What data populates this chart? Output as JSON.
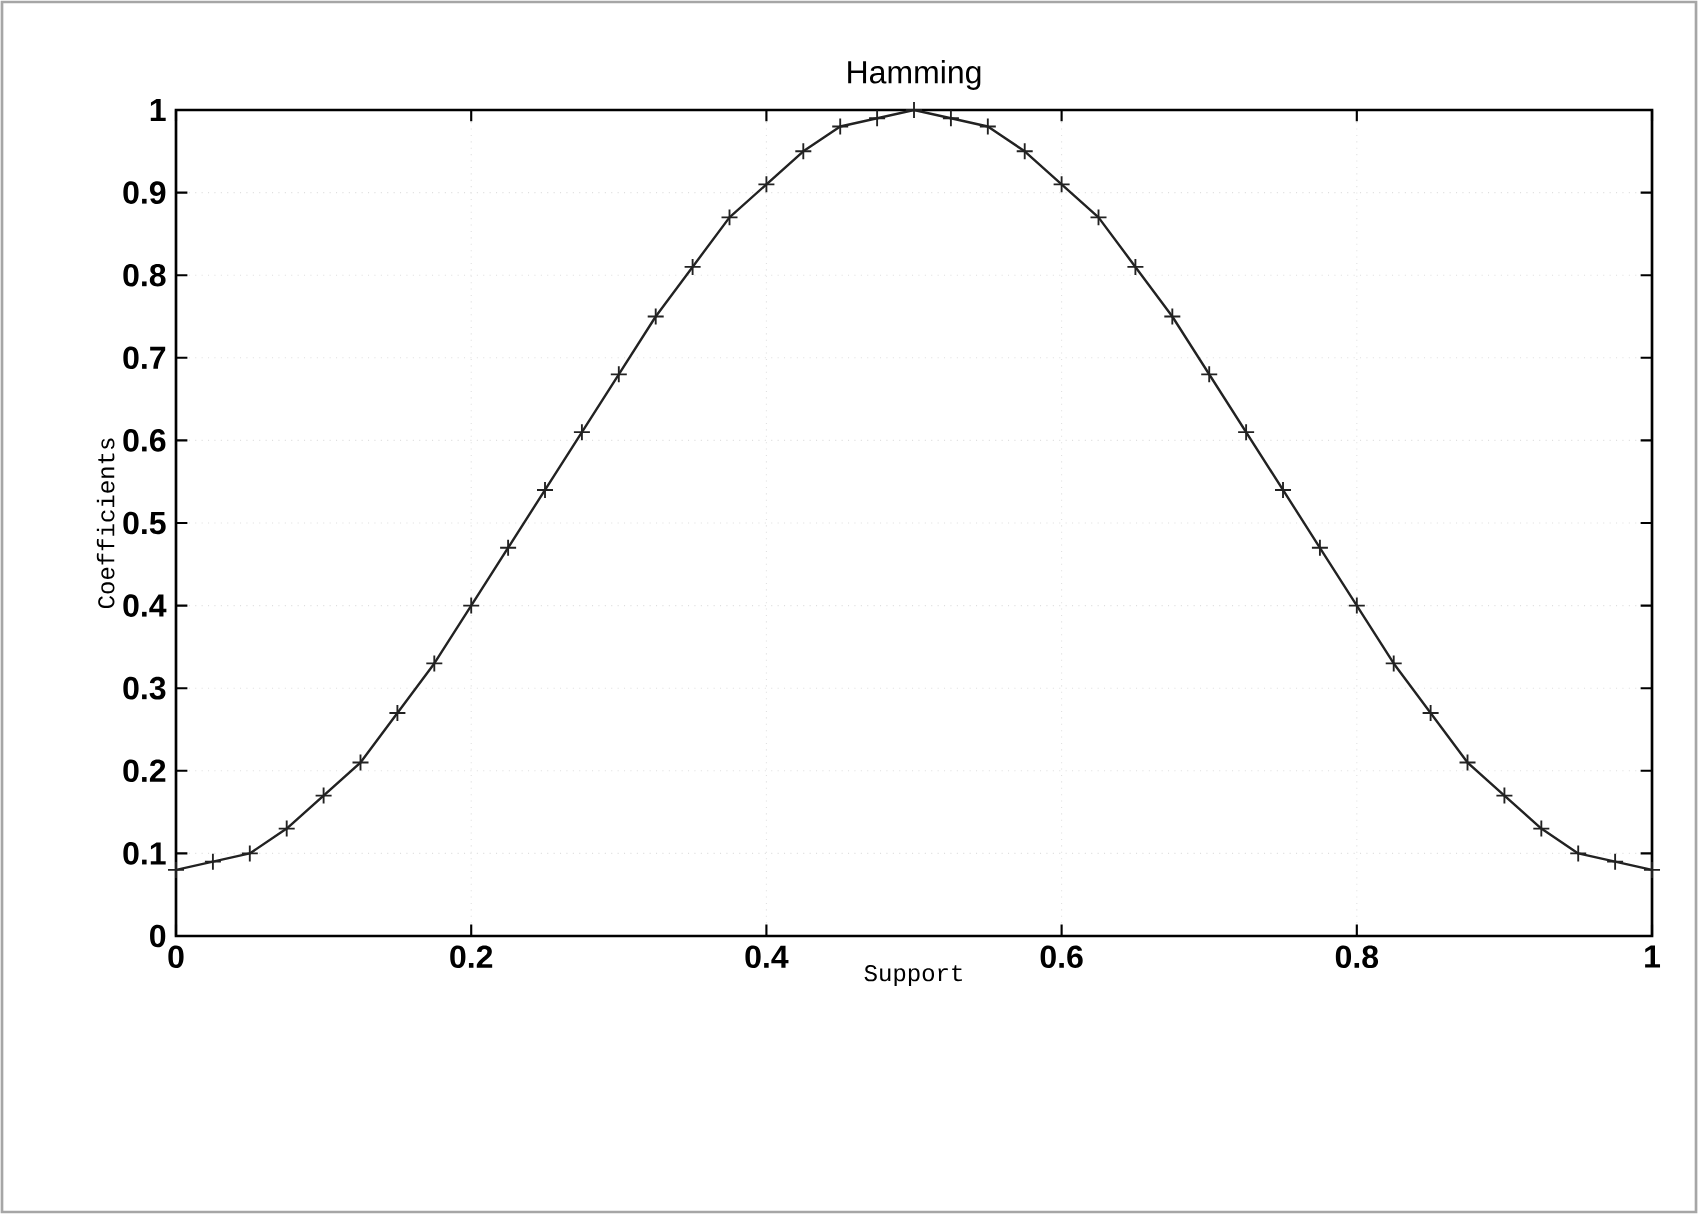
{
  "chart_data": {
    "type": "line",
    "title": "Hamming",
    "xlabel": "Support",
    "ylabel": "Coefficients",
    "x": [
      0,
      0.025,
      0.05,
      0.075,
      0.1,
      0.125,
      0.15,
      0.175,
      0.2,
      0.225,
      0.25,
      0.275,
      0.3,
      0.325,
      0.35,
      0.375,
      0.4,
      0.425,
      0.45,
      0.475,
      0.5,
      0.525,
      0.55,
      0.575,
      0.6,
      0.625,
      0.65,
      0.675,
      0.7,
      0.725,
      0.75,
      0.775,
      0.8,
      0.825,
      0.85,
      0.875,
      0.9,
      0.925,
      0.95,
      0.975,
      1
    ],
    "series": [
      {
        "color": "#222222",
        "values": [
          0.08,
          0.09,
          0.1,
          0.13,
          0.17,
          0.21,
          0.27,
          0.33,
          0.4,
          0.47,
          0.54,
          0.61,
          0.68,
          0.75,
          0.81,
          0.87,
          0.91,
          0.95,
          0.98,
          0.99,
          1.0,
          0.99,
          0.98,
          0.95,
          0.91,
          0.87,
          0.81,
          0.75,
          0.68,
          0.61,
          0.54,
          0.47,
          0.4,
          0.33,
          0.27,
          0.21,
          0.17,
          0.13,
          0.1,
          0.09,
          0.08
        ]
      }
    ],
    "xlim": [
      0,
      1
    ],
    "ylim": [
      0,
      1
    ],
    "xticks": [
      0,
      0.2,
      0.4,
      0.6,
      0.8,
      1
    ],
    "yticks": [
      0,
      0.1,
      0.2,
      0.3,
      0.4,
      0.5,
      0.6,
      0.7,
      0.8,
      0.9,
      1
    ],
    "grid": true,
    "marker": "cross",
    "line_style": "solid"
  }
}
